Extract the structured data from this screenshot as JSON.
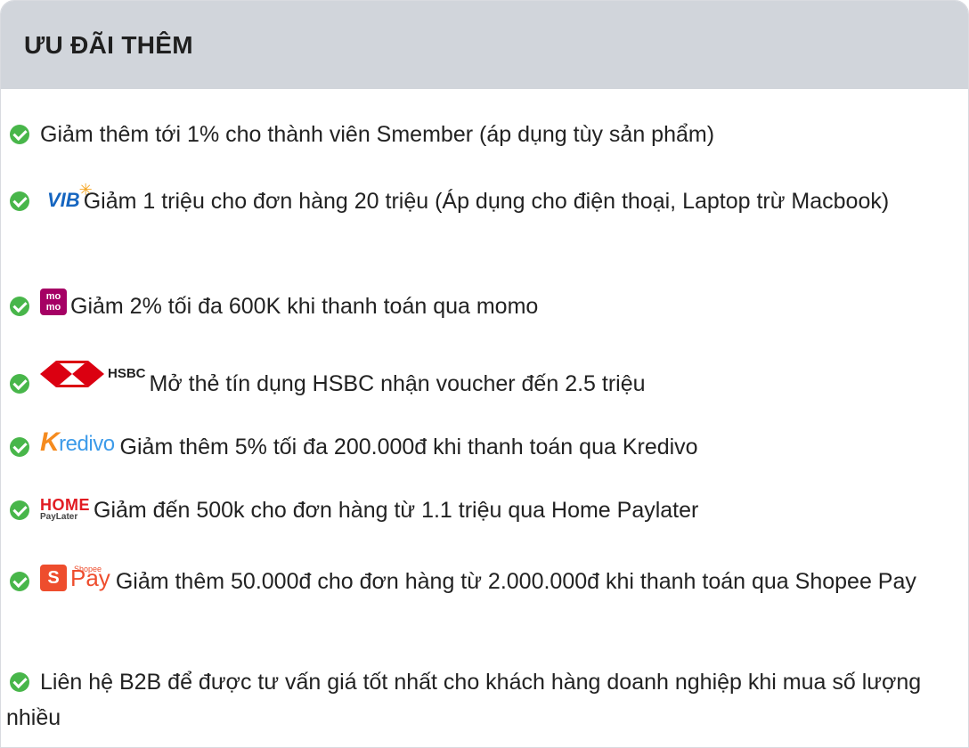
{
  "header": {
    "title": "ƯU ĐÃI THÊM"
  },
  "offers": [
    {
      "logo": "",
      "text": "Giảm thêm tới 1% cho thành viên Smember (áp dụng tùy sản phẩm)"
    },
    {
      "logo": "VIB",
      "text": "Giảm 1 triệu cho đơn hàng 20 triệu (Áp dụng cho điện thoại, Laptop trừ Macbook)"
    },
    {
      "logo": "mo mo",
      "text": "Giảm 2% tối đa 600K khi thanh toán qua momo"
    },
    {
      "logo": "HSBC",
      "text": "Mở thẻ tín dụng HSBC nhận voucher đến 2.5 triệu"
    },
    {
      "logo": "Kredivo",
      "text": "Giảm thêm 5% tối đa 200.000đ khi thanh toán qua Kredivo"
    },
    {
      "logo": "HOME PayLater",
      "text": "Giảm đến 500k cho đơn hàng từ 1.1 triệu qua Home Paylater"
    },
    {
      "logo": "ShopeePay",
      "text": "Giảm thêm 50.000đ cho đơn hàng từ 2.000.000đ khi thanh toán qua Shopee Pay"
    },
    {
      "logo": "",
      "text": "Liên hệ B2B để được tư vấn giá tốt nhất cho khách hàng doanh nghiệp khi mua số lượng nhiều"
    }
  ],
  "logos": {
    "vib": "VIB",
    "momo_top": "mo",
    "momo_bottom": "mo",
    "hsbc": "HSBC",
    "kredivo_k": "K",
    "kredivo_rest": "redivo",
    "home": "HOME",
    "paylater": "PayLater",
    "shopee_s": "S",
    "shopee_pay": "Pay",
    "shopee_small": "Shopee"
  },
  "colors": {
    "header_bg": "#d1d5db",
    "check_green": "#48b64a",
    "vib_blue": "#1565c0",
    "momo_pink": "#a50064",
    "hsbc_red": "#db0011",
    "kredivo_orange": "#f58b1f",
    "kredivo_blue": "#3d9be9",
    "home_red": "#e11b22",
    "shopee_orange": "#ee4d2d"
  }
}
